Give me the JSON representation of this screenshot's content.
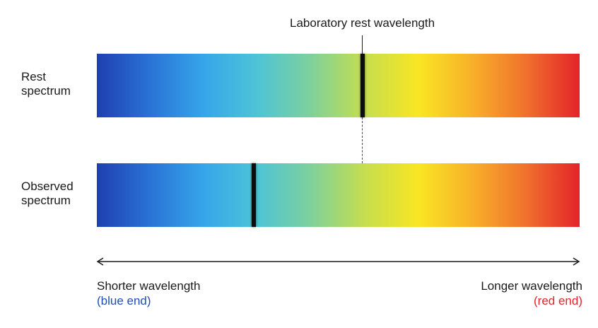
{
  "labels": {
    "rest_spectrum": "Rest\nspectrum",
    "observed_spectrum": "Observed\nspectrum",
    "lab_rest_wavelength": "Laboratory rest wavelength",
    "shorter_wavelength": "Shorter wavelength",
    "blue_end": "(blue end)",
    "longer_wavelength": "Longer wavelength",
    "red_end": "(red end)"
  },
  "colors": {
    "blue_end_text": "#1f4fb5",
    "red_end_text": "#e42329",
    "absorption_line": "#0d0d0d"
  },
  "spectra": {
    "gradient": [
      "#1f3fb0",
      "#2a73d6",
      "#36a6ea",
      "#4ec4d6",
      "#7fd19a",
      "#c6de4e",
      "#f9e623",
      "#f8b02a",
      "#f0712d",
      "#e42329"
    ],
    "rest_line_fraction": 0.55,
    "observed_line_fraction": 0.325
  }
}
